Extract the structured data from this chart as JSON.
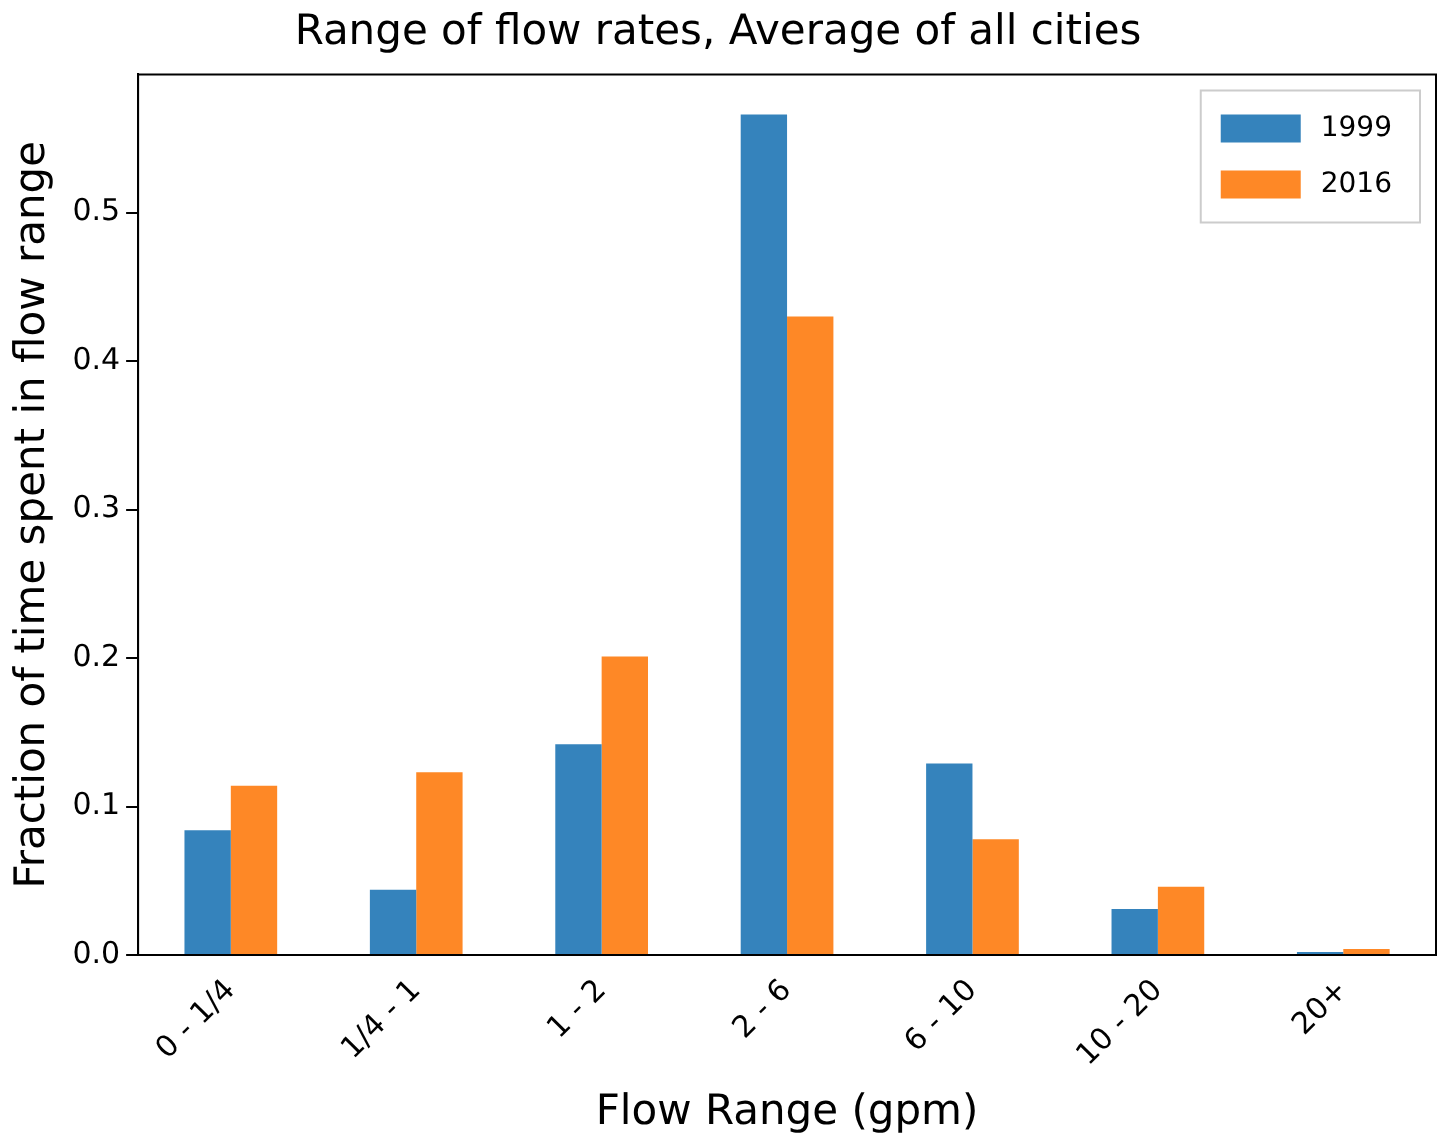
{
  "chart_data": {
    "type": "bar",
    "title": "Range of flow rates, Average of all cities",
    "xlabel": "Flow Range (gpm)",
    "ylabel": "Fraction of time spent in flow range",
    "categories": [
      "0 - 1/4",
      "1/4 - 1",
      "1 - 2",
      "2 - 6",
      "6 - 10",
      "10 - 20",
      "20+"
    ],
    "series": [
      {
        "name": "1999",
        "color": "#3583bc",
        "values": [
          0.084,
          0.044,
          0.142,
          0.566,
          0.129,
          0.031,
          0.002
        ]
      },
      {
        "name": "2016",
        "color": "#fe8826",
        "values": [
          0.114,
          0.123,
          0.201,
          0.43,
          0.078,
          0.046,
          0.004
        ]
      }
    ],
    "ylim": [
      0,
      0.593
    ],
    "yticks": [
      {
        "value": 0,
        "label": "0.0"
      },
      0.1,
      0.2,
      0.3,
      0.4,
      0.5
    ],
    "grid": false,
    "legend": "top right"
  }
}
